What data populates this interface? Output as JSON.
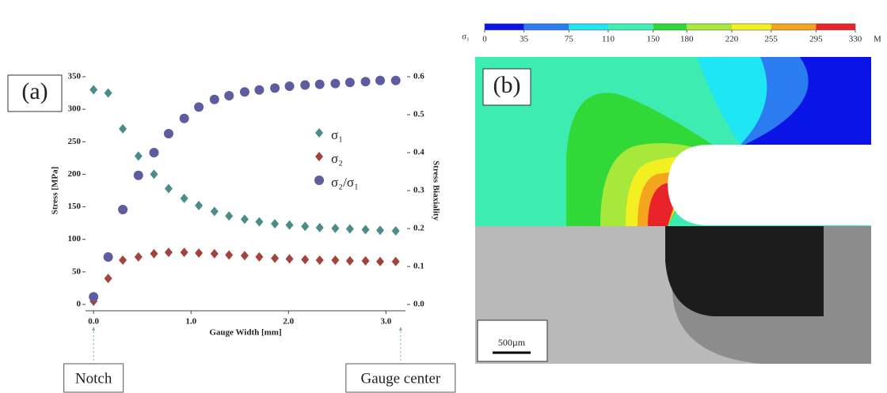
{
  "chart_data": [
    {
      "type": "scatter",
      "panel_label": "(a)",
      "x_label": "Gauge Width [mm]",
      "y_label": "Stress [MPa]",
      "y2_label": "Stress Biaxiality",
      "x": [
        0.0,
        0.15,
        0.3,
        0.46,
        0.62,
        0.77,
        0.93,
        1.08,
        1.24,
        1.39,
        1.55,
        1.7,
        1.86,
        2.01,
        2.17,
        2.32,
        2.48,
        2.63,
        2.79,
        2.94,
        3.1
      ],
      "series": [
        {
          "name": "σ₁",
          "color": "#4b8c8a",
          "marker": "diamond",
          "values": [
            330,
            325,
            270,
            228,
            200,
            178,
            163,
            152,
            143,
            136,
            131,
            127,
            124,
            122,
            120,
            118,
            117,
            116,
            115,
            114,
            113
          ]
        },
        {
          "name": "σ₂",
          "color": "#a2443e",
          "marker": "diamond",
          "values": [
            5,
            40,
            68,
            73,
            78,
            80,
            80,
            79,
            78,
            76,
            75,
            73,
            71,
            70,
            69,
            68,
            68,
            67,
            67,
            66,
            66
          ]
        },
        {
          "name": "σ₂/σ₁",
          "color": "#5c5c9e",
          "marker": "circle",
          "axis": "y2",
          "values": [
            0.02,
            0.125,
            0.25,
            0.34,
            0.4,
            0.45,
            0.49,
            0.52,
            0.54,
            0.55,
            0.56,
            0.565,
            0.57,
            0.575,
            0.578,
            0.58,
            0.582,
            0.585,
            0.587,
            0.59,
            0.59
          ]
        }
      ],
      "xlim": [
        -0.05,
        3.2
      ],
      "xticks": [
        {
          "value": 0,
          "label": "0.0"
        },
        {
          "value": 1,
          "label": "1.0"
        },
        {
          "value": 2,
          "label": "2.0"
        },
        {
          "value": 3,
          "label": "3.0"
        }
      ],
      "ylim": [
        0,
        350
      ],
      "yticks": [
        0,
        50,
        100,
        150,
        200,
        250,
        300,
        350
      ],
      "y2lim": [
        0,
        0.6
      ],
      "y2ticks": [
        {
          "value": 0,
          "label": "0.0"
        },
        0.1,
        0.2,
        0.3,
        0.4,
        0.5,
        0.6
      ],
      "legend": "center right",
      "annotations": [
        {
          "text": "Notch",
          "x": 0
        },
        {
          "text": "Gauge center",
          "x": 3.15
        }
      ]
    },
    {
      "type": "colorbar",
      "panel_label": "(b)",
      "label": "σ₁",
      "unit": "M",
      "ticks": [
        0,
        35,
        75,
        110,
        150,
        180,
        220,
        255,
        295,
        330
      ],
      "colors": [
        "#0a14e6",
        "#2a7cf0",
        "#1ee6f5",
        "#3ef0b8",
        "#30d838",
        "#a8e83a",
        "#f2f020",
        "#f5a41e",
        "#e8242a"
      ],
      "scale_bar": "500µm"
    }
  ]
}
